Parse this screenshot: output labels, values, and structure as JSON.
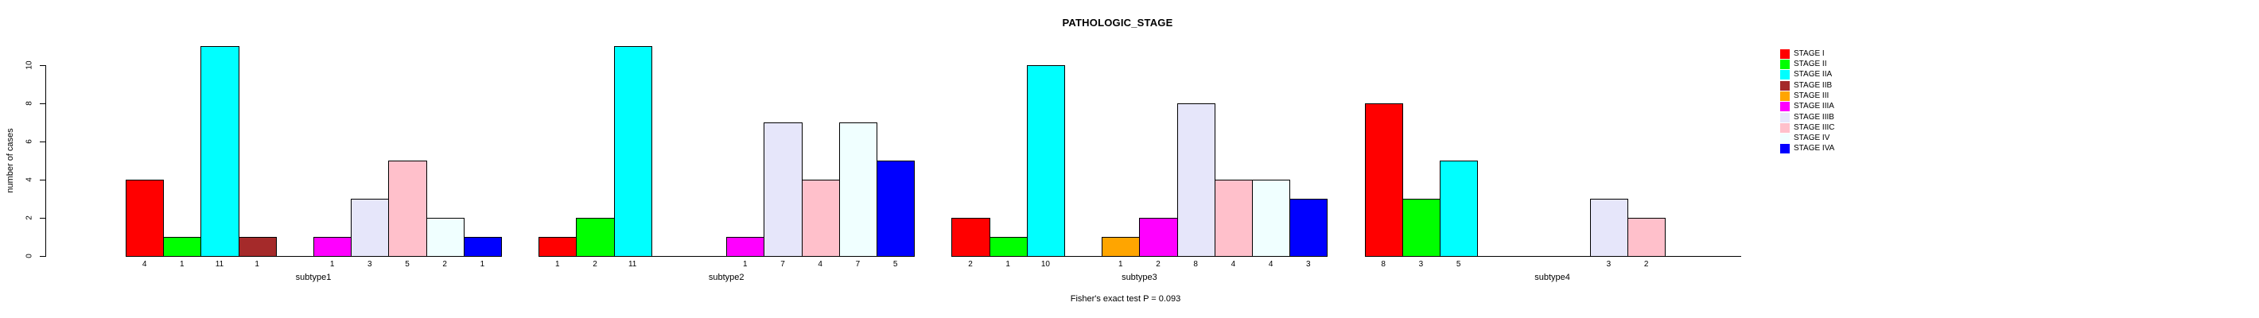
{
  "chart_data": {
    "type": "bar",
    "title": "PATHOLOGIC_STAGE",
    "ylabel": "number of cases",
    "xlabel": "",
    "footer": "Fisher's exact test P = 0.093",
    "ylim": [
      0,
      10
    ],
    "yticks": [
      0,
      2,
      4,
      6,
      8,
      10
    ],
    "grid": false,
    "legend_position": "right",
    "bar_value_labels": true,
    "categories": [
      "subtype1",
      "subtype2",
      "subtype3",
      "subtype4"
    ],
    "series": [
      {
        "name": "STAGE I",
        "color": "#FF0000",
        "values": [
          4,
          1,
          2,
          8
        ]
      },
      {
        "name": "STAGE II",
        "color": "#00FF00",
        "values": [
          1,
          2,
          1,
          3
        ]
      },
      {
        "name": "STAGE IIA",
        "color": "#00FFFF",
        "values": [
          11,
          11,
          10,
          5
        ]
      },
      {
        "name": "STAGE IIB",
        "color": "#A52A2A",
        "values": [
          1,
          0,
          0,
          0
        ]
      },
      {
        "name": "STAGE III",
        "color": "#FFA500",
        "values": [
          0,
          0,
          1,
          0
        ]
      },
      {
        "name": "STAGE IIIA",
        "color": "#FF00FF",
        "values": [
          1,
          1,
          2,
          0
        ]
      },
      {
        "name": "STAGE IIIB",
        "color": "#E6E6FA",
        "values": [
          3,
          7,
          8,
          3
        ]
      },
      {
        "name": "STAGE IIIC",
        "color": "#FFC0CB",
        "values": [
          5,
          4,
          4,
          2
        ]
      },
      {
        "name": "STAGE IV",
        "color": "#F0FFFF",
        "values": [
          2,
          7,
          4,
          0
        ]
      },
      {
        "name": "STAGE IVA",
        "color": "#0000FF",
        "values": [
          1,
          5,
          3,
          0
        ]
      }
    ]
  }
}
